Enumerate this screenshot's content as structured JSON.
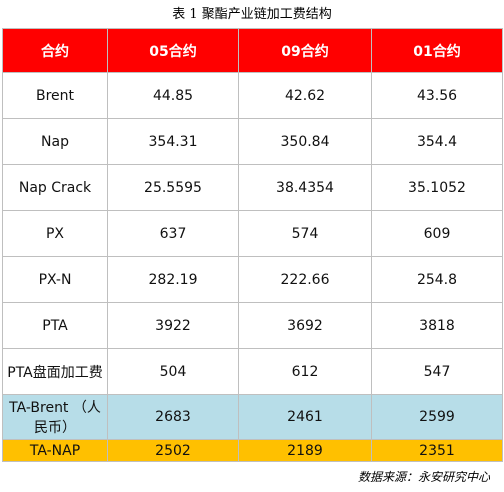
{
  "title": "表 1 聚酯产业链加工费结构",
  "table": {
    "header": [
      "合约",
      "05合约",
      "09合约",
      "01合约"
    ],
    "rows": [
      [
        "Brent",
        "44.85",
        "42.62",
        "43.56"
      ],
      [
        "Nap",
        "354.31",
        "350.84",
        "354.4"
      ],
      [
        "Nap Crack",
        "25.5595",
        "38.4354",
        "35.1052"
      ],
      [
        "PX",
        "637",
        "574",
        "609"
      ],
      [
        "PX-N",
        "282.19",
        "222.66",
        "254.8"
      ],
      [
        "PTA",
        "3922",
        "3692",
        "3818"
      ],
      [
        "PTA盘面加工费",
        "504",
        "612",
        "547"
      ],
      [
        "TA-Brent （人民币）",
        "2683",
        "2461",
        "2599"
      ],
      [
        "TA-NAP",
        "2502",
        "2189",
        "2351"
      ]
    ]
  },
  "source": "数据来源：永安研究中心"
}
